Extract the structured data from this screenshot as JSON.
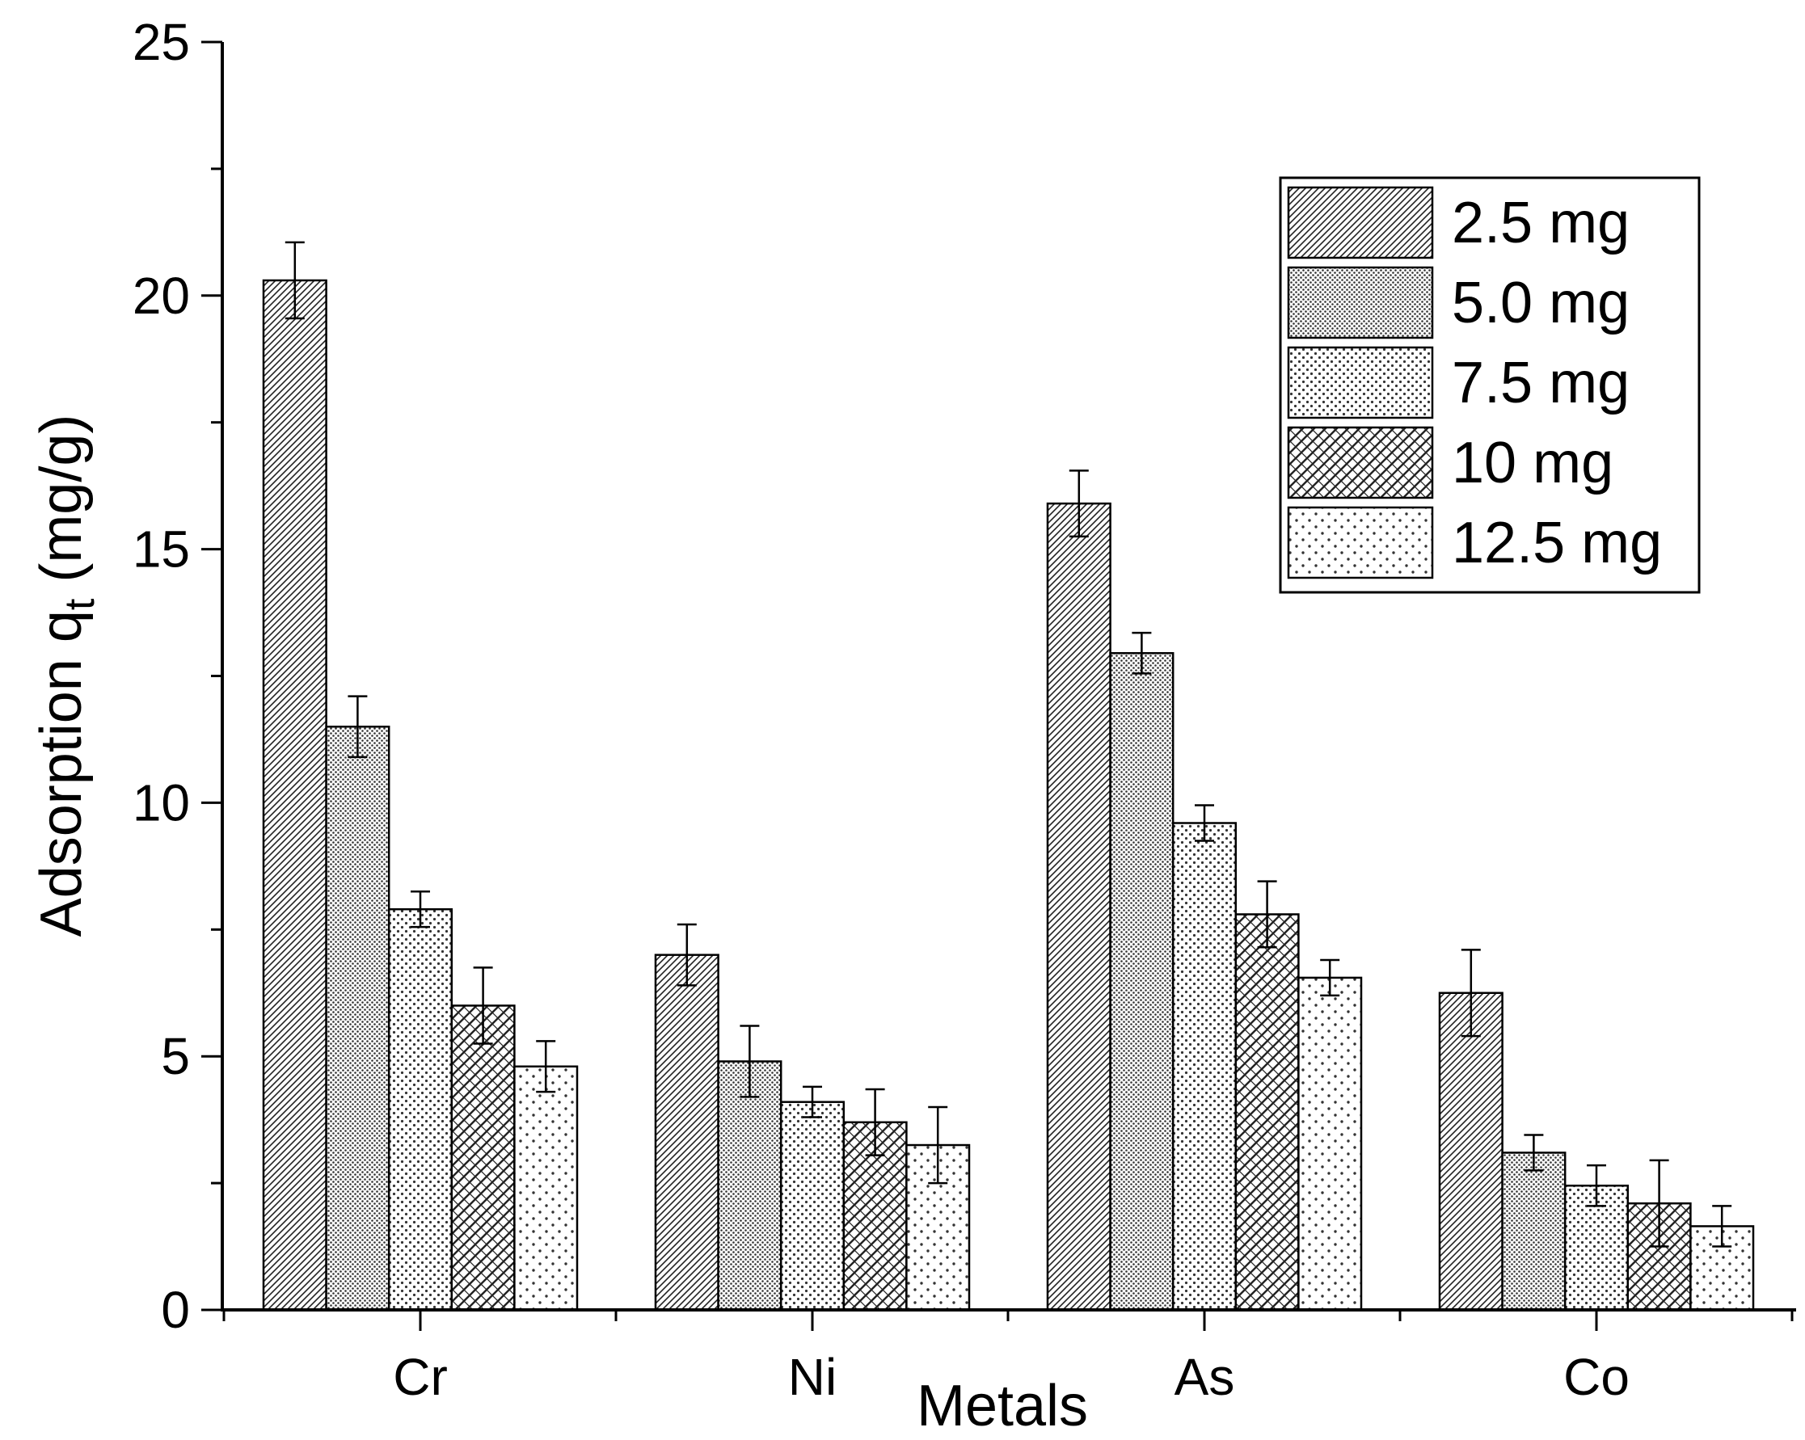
{
  "chart_data": {
    "type": "bar",
    "title": "",
    "xlabel": "Metals",
    "ylabel_main": "Adsorption q",
    "ylabel_sub": "t",
    "ylabel_unit": " (mg/g)",
    "categories": [
      "Cr",
      "Ni",
      "As",
      "Co"
    ],
    "ylim": [
      0,
      25
    ],
    "yticks": [
      0,
      5,
      10,
      15,
      20,
      25
    ],
    "ytick_labels": [
      "0",
      "5",
      "10",
      "15",
      "20",
      "25"
    ],
    "legend_position": "top-right",
    "series": [
      {
        "name": "2.5 mg",
        "pattern": "dense-hatch",
        "values": [
          20.3,
          7.0,
          15.9,
          6.25
        ],
        "errors": [
          0.75,
          0.6,
          0.65,
          0.85
        ]
      },
      {
        "name": "5.0 mg",
        "pattern": "dense-dots",
        "values": [
          11.5,
          4.9,
          12.95,
          3.1
        ],
        "errors": [
          0.6,
          0.7,
          0.4,
          0.35
        ]
      },
      {
        "name": "7.5 mg",
        "pattern": "medium-dots",
        "values": [
          7.9,
          4.1,
          9.6,
          2.45
        ],
        "errors": [
          0.35,
          0.3,
          0.35,
          0.4
        ]
      },
      {
        "name": "10 mg",
        "pattern": "diagonal-hatch",
        "values": [
          6.0,
          3.7,
          7.8,
          2.1
        ],
        "errors": [
          0.75,
          0.65,
          0.65,
          0.85
        ]
      },
      {
        "name": "12.5 mg",
        "pattern": "sparse-dots",
        "values": [
          4.8,
          3.25,
          6.55,
          1.65
        ],
        "errors": [
          0.5,
          0.75,
          0.35,
          0.4
        ]
      }
    ]
  }
}
